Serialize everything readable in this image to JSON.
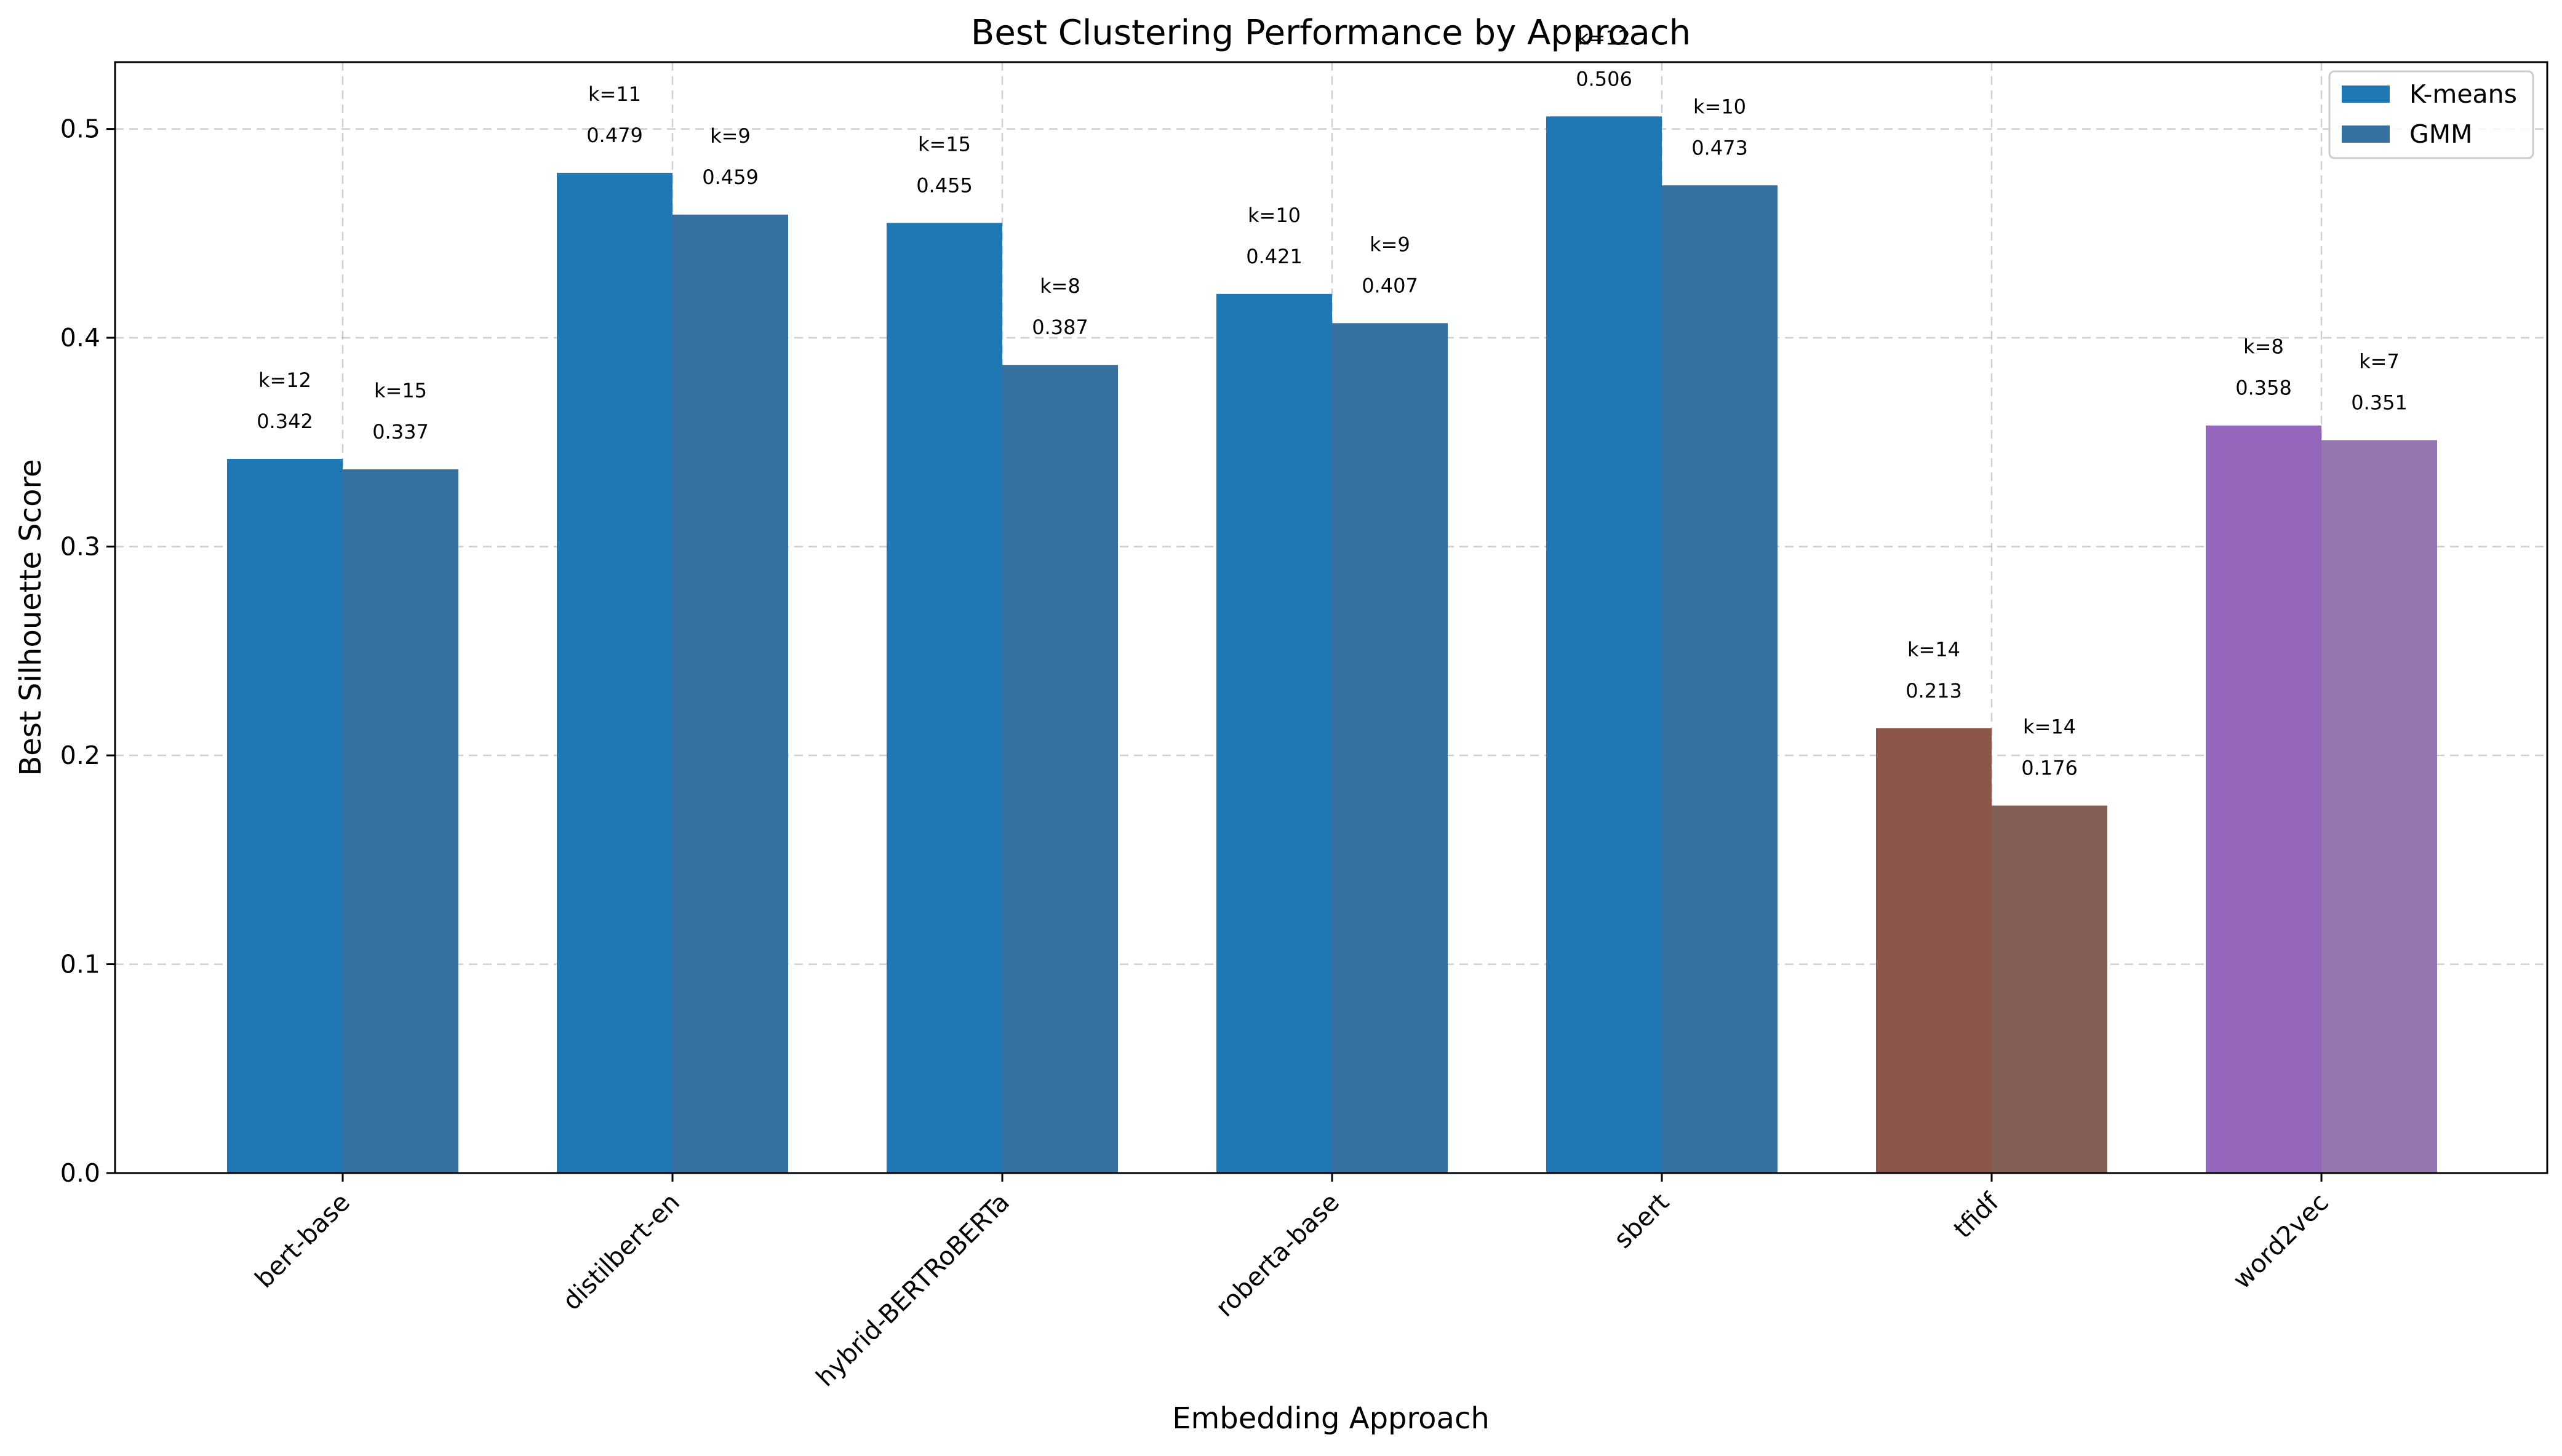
{
  "chart_data": {
    "type": "bar",
    "title": "Best Clustering Performance by Approach",
    "xlabel": "Embedding Approach",
    "ylabel": "Best Silhouette Score",
    "categories": [
      "bert-base",
      "distilbert-en",
      "hybrid-BERTRoBERTa",
      "roberta-base",
      "sbert",
      "tfidf",
      "word2vec"
    ],
    "ylim": [
      0,
      0.532
    ],
    "yticks": [
      "0.0",
      "0.1",
      "0.2",
      "0.3",
      "0.4",
      "0.5"
    ],
    "grid": true,
    "legend_position": "top-right",
    "series": [
      {
        "name": "K-means",
        "values": [
          0.342,
          0.479,
          0.455,
          0.421,
          0.506,
          0.213,
          0.358
        ],
        "value_labels": [
          "0.342",
          "0.479",
          "0.455",
          "0.421",
          "0.506",
          "0.213",
          "0.358"
        ],
        "k_labels": [
          "k=12",
          "k=11",
          "k=15",
          "k=10",
          "k=12",
          "k=14",
          "k=8"
        ],
        "legend_color": "#1f77b4",
        "colors": [
          "#1f77b4",
          "#1f77b4",
          "#1f77b4",
          "#1f77b4",
          "#1f77b4",
          "#8c564b",
          "#9467bd"
        ]
      },
      {
        "name": "GMM",
        "values": [
          0.337,
          0.459,
          0.387,
          0.407,
          0.473,
          0.176,
          0.351
        ],
        "value_labels": [
          "0.337",
          "0.459",
          "0.387",
          "0.407",
          "0.473",
          "0.176",
          "0.351"
        ],
        "k_labels": [
          "k=15",
          "k=9",
          "k=8",
          "k=9",
          "k=10",
          "k=14",
          "k=7"
        ],
        "legend_color": "#36719f",
        "colors": [
          "#36719f",
          "#36719f",
          "#36719f",
          "#36719f",
          "#36719f",
          "#835f56",
          "#9676b0"
        ]
      }
    ]
  }
}
